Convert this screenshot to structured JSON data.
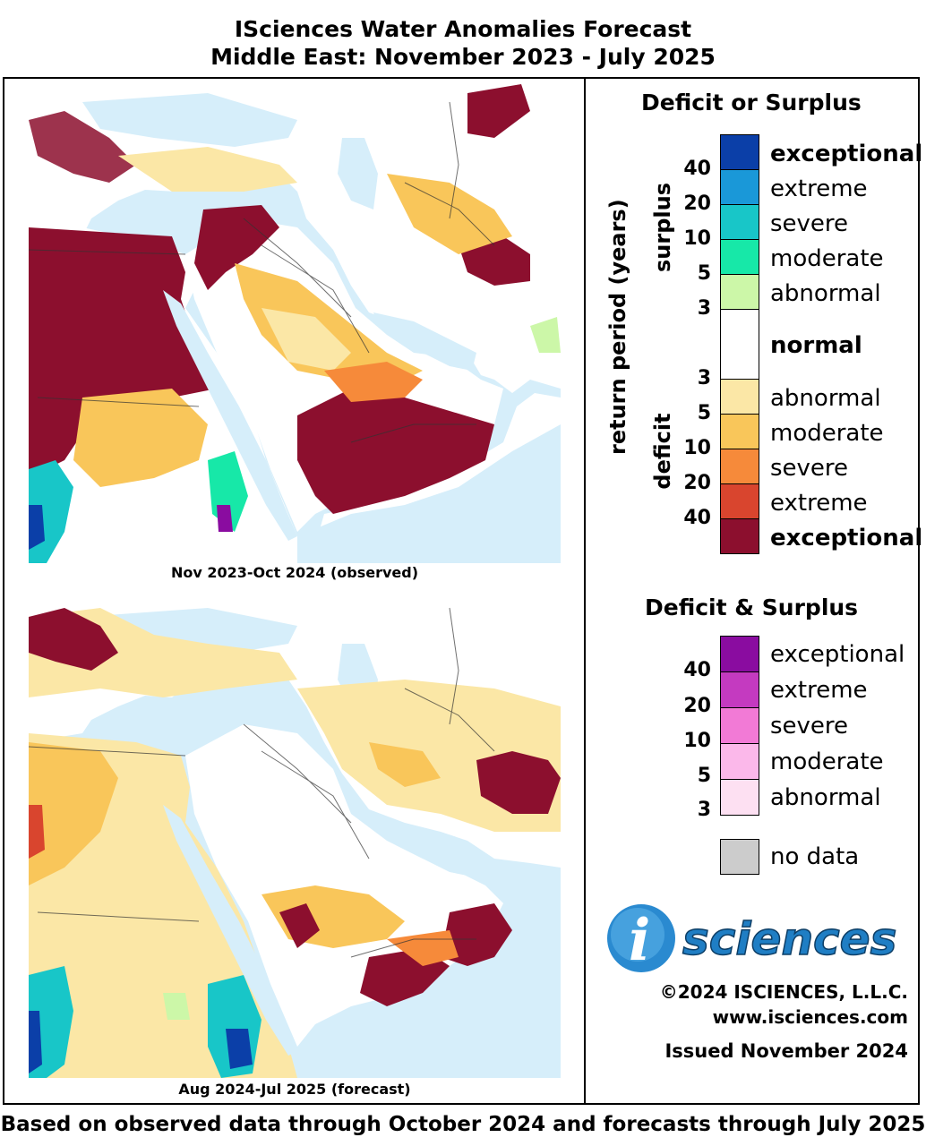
{
  "title_line1": "ISciences Water Anomalies Forecast",
  "title_line2": "Middle East: November 2023 - July 2025",
  "maps": [
    {
      "caption": "Nov 2023-Oct 2024 (observed)"
    },
    {
      "caption": "Aug 2024-Jul 2025 (forecast)"
    }
  ],
  "legend1": {
    "title": "Deficit or Surplus",
    "axis_label": "return period (years)",
    "surplus_label": "surplus",
    "deficit_label": "deficit",
    "surplus_classes": [
      {
        "label": "exceptional",
        "color": "#0b3fa8"
      },
      {
        "label": "extreme",
        "color": "#1a98d8"
      },
      {
        "label": "severe",
        "color": "#18c6c8"
      },
      {
        "label": "moderate",
        "color": "#17e8a8"
      },
      {
        "label": "abnormal",
        "color": "#ccf7a8"
      }
    ],
    "normal": {
      "label": "normal",
      "color": "#ffffff"
    },
    "deficit_classes": [
      {
        "label": "abnormal",
        "color": "#fbe7a6"
      },
      {
        "label": "moderate",
        "color": "#f9c65a"
      },
      {
        "label": "severe",
        "color": "#f68a3a"
      },
      {
        "label": "extreme",
        "color": "#d9452e"
      },
      {
        "label": "exceptional",
        "color": "#8c0f2e"
      }
    ],
    "surplus_ticks": [
      "40",
      "20",
      "10",
      "5",
      "3"
    ],
    "deficit_ticks": [
      "3",
      "5",
      "10",
      "20",
      "40"
    ]
  },
  "legend2": {
    "title": "Deficit & Surplus",
    "classes": [
      {
        "label": "exceptional",
        "color": "#8a0ca0"
      },
      {
        "label": "extreme",
        "color": "#c43ac0"
      },
      {
        "label": "severe",
        "color": "#f27ad6"
      },
      {
        "label": "moderate",
        "color": "#fbb8ea"
      },
      {
        "label": "abnormal",
        "color": "#fde0f2"
      }
    ],
    "ticks": [
      "40",
      "20",
      "10",
      "5",
      "3"
    ]
  },
  "no_data": {
    "label": "no data",
    "color": "#cccccc"
  },
  "logo_text": "sciences",
  "logo_letter": "i",
  "copyright": "©2024 ISCIENCES, L.L.C.",
  "website": "www.isciences.com",
  "issued": "Issued November 2024",
  "footer": "Based on observed data through October 2024 and forecasts through July 2025",
  "colors": {
    "water": "#d6eefa",
    "land_normal": "#ffffff"
  }
}
